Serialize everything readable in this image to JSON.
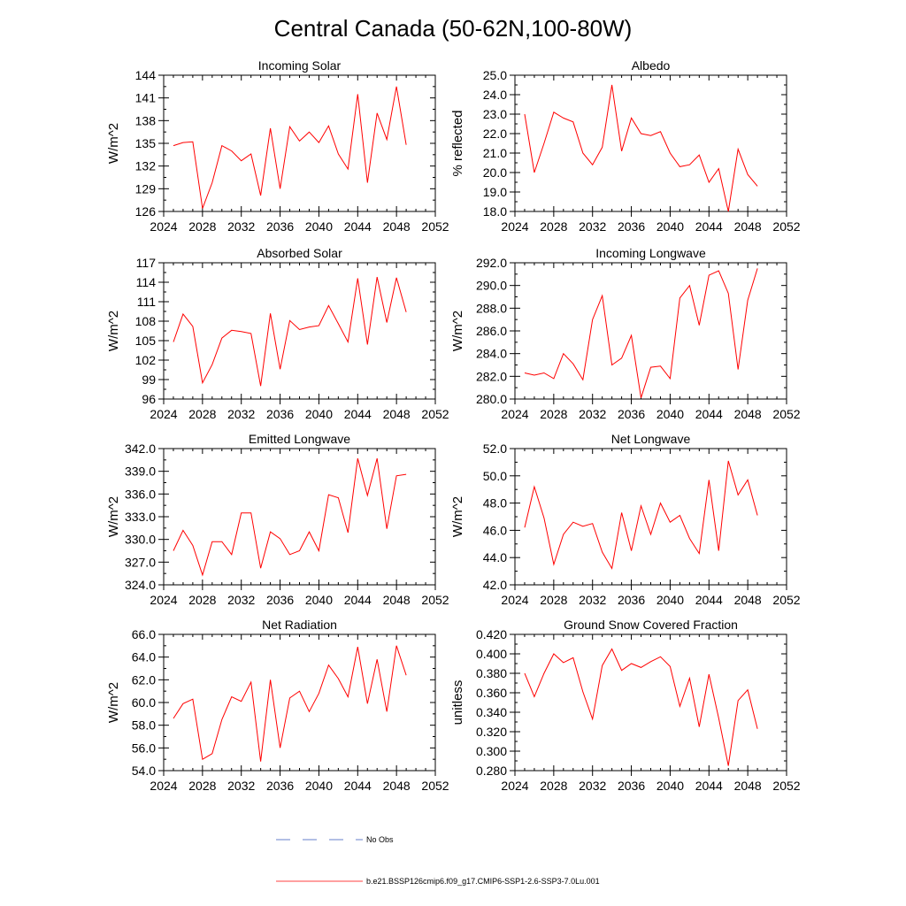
{
  "figure": {
    "title": "Central Canada (50-62N,100-80W)"
  },
  "legend": {
    "entries": [
      {
        "label": "No Obs",
        "color": "#3355bb",
        "style": "dashed"
      },
      {
        "label": "b.e21.BSSP126cmip6.f09_g17.CMIP6-SSP1-2.6-SSP3-7.0Lu.001",
        "color": "#ff0000",
        "style": "solid"
      }
    ]
  },
  "colors": {
    "series": "#ff0000",
    "axes": "#000000"
  },
  "chart_data": [
    {
      "type": "line",
      "title": "Incoming Solar",
      "xlabel": "",
      "ylabel": "W/m^2",
      "xlim": [
        2024,
        2052
      ],
      "ylim": [
        126,
        144
      ],
      "xticks": [
        2024,
        2028,
        2032,
        2036,
        2040,
        2044,
        2048,
        2052
      ],
      "xtick_labels": [
        "2024",
        "2028",
        "2032",
        "2036",
        "2040",
        "2044",
        "2048",
        "2052"
      ],
      "yticks": [
        126,
        129,
        132,
        135,
        138,
        141,
        144
      ],
      "ytick_labels": [
        "126",
        "129",
        "132",
        "135",
        "138",
        "141",
        "144"
      ],
      "x": [
        2025,
        2026,
        2027,
        2028,
        2029,
        2030,
        2031,
        2032,
        2033,
        2034,
        2035,
        2036,
        2037,
        2038,
        2039,
        2040,
        2041,
        2042,
        2043,
        2044,
        2045,
        2046,
        2047,
        2048,
        2049
      ],
      "values": [
        134.7,
        135.1,
        135.2,
        126.4,
        129.8,
        134.7,
        134.0,
        132.7,
        133.6,
        128.1,
        137.0,
        129.0,
        137.2,
        135.3,
        136.5,
        135.1,
        137.3,
        133.6,
        131.6,
        141.5,
        129.8,
        139.0,
        135.5,
        142.5,
        134.8
      ]
    },
    {
      "type": "line",
      "title": "Albedo",
      "xlabel": "",
      "ylabel": "% reflected",
      "xlim": [
        2024,
        2052
      ],
      "ylim": [
        18.0,
        25.0
      ],
      "xticks": [
        2024,
        2028,
        2032,
        2036,
        2040,
        2044,
        2048,
        2052
      ],
      "xtick_labels": [
        "2024",
        "2028",
        "2032",
        "2036",
        "2040",
        "2044",
        "2048",
        "2052"
      ],
      "yticks": [
        18.0,
        19.0,
        20.0,
        21.0,
        22.0,
        23.0,
        24.0,
        25.0
      ],
      "ytick_labels": [
        "18.0",
        "19.0",
        "20.0",
        "21.0",
        "22.0",
        "23.0",
        "24.0",
        "25.0"
      ],
      "x": [
        2025,
        2026,
        2027,
        2028,
        2029,
        2030,
        2031,
        2032,
        2033,
        2034,
        2035,
        2036,
        2037,
        2038,
        2039,
        2040,
        2041,
        2042,
        2043,
        2044,
        2045,
        2046,
        2047,
        2048,
        2049
      ],
      "values": [
        23.0,
        20.0,
        21.5,
        23.1,
        22.8,
        22.6,
        21.0,
        20.4,
        21.3,
        24.5,
        21.1,
        22.8,
        22.0,
        21.9,
        22.1,
        21.0,
        20.3,
        20.4,
        20.9,
        19.5,
        20.2,
        18.0,
        21.2,
        19.9,
        19.3
      ]
    },
    {
      "type": "line",
      "title": "Absorbed Solar",
      "xlabel": "",
      "ylabel": "W/m^2",
      "xlim": [
        2024,
        2052
      ],
      "ylim": [
        96,
        117
      ],
      "xticks": [
        2024,
        2028,
        2032,
        2036,
        2040,
        2044,
        2048,
        2052
      ],
      "xtick_labels": [
        "2024",
        "2028",
        "2032",
        "2036",
        "2040",
        "2044",
        "2048",
        "2052"
      ],
      "yticks": [
        96,
        99,
        102,
        105,
        108,
        111,
        114,
        117
      ],
      "ytick_labels": [
        "96",
        "99",
        "102",
        "105",
        "108",
        "111",
        "114",
        "117"
      ],
      "x": [
        2025,
        2026,
        2027,
        2028,
        2029,
        2030,
        2031,
        2032,
        2033,
        2034,
        2035,
        2036,
        2037,
        2038,
        2039,
        2040,
        2041,
        2042,
        2043,
        2044,
        2045,
        2046,
        2047,
        2048,
        2049
      ],
      "values": [
        104.8,
        109.1,
        107.2,
        98.5,
        101.3,
        105.4,
        106.6,
        106.4,
        106.1,
        98.0,
        109.2,
        100.6,
        108.1,
        106.7,
        107.1,
        107.3,
        110.4,
        107.6,
        104.8,
        114.6,
        104.4,
        114.8,
        107.8,
        114.7,
        109.4
      ]
    },
    {
      "type": "line",
      "title": "Incoming Longwave",
      "xlabel": "",
      "ylabel": "W/m^2",
      "xlim": [
        2024,
        2052
      ],
      "ylim": [
        280.0,
        292.0
      ],
      "xticks": [
        2024,
        2028,
        2032,
        2036,
        2040,
        2044,
        2048,
        2052
      ],
      "xtick_labels": [
        "2024",
        "2028",
        "2032",
        "2036",
        "2040",
        "2044",
        "2048",
        "2052"
      ],
      "yticks": [
        280.0,
        282.0,
        284.0,
        286.0,
        288.0,
        290.0,
        292.0
      ],
      "ytick_labels": [
        "280.0",
        "282.0",
        "284.0",
        "286.0",
        "288.0",
        "290.0",
        "292.0"
      ],
      "x": [
        2025,
        2026,
        2027,
        2028,
        2029,
        2030,
        2031,
        2032,
        2033,
        2034,
        2035,
        2036,
        2037,
        2038,
        2039,
        2040,
        2041,
        2042,
        2043,
        2044,
        2045,
        2046,
        2047,
        2048,
        2049
      ],
      "values": [
        282.3,
        282.1,
        282.3,
        281.8,
        284.0,
        283.1,
        281.7,
        287.0,
        289.1,
        283.0,
        283.6,
        285.6,
        280.1,
        282.8,
        282.9,
        281.8,
        288.9,
        290.0,
        286.5,
        290.9,
        291.3,
        289.3,
        282.6,
        288.7,
        291.5
      ]
    },
    {
      "type": "line",
      "title": "Emitted Longwave",
      "xlabel": "",
      "ylabel": "W/m^2",
      "xlim": [
        2024,
        2052
      ],
      "ylim": [
        324.0,
        342.0
      ],
      "xticks": [
        2024,
        2028,
        2032,
        2036,
        2040,
        2044,
        2048,
        2052
      ],
      "xtick_labels": [
        "2024",
        "2028",
        "2032",
        "2036",
        "2040",
        "2044",
        "2048",
        "2052"
      ],
      "yticks": [
        324.0,
        327.0,
        330.0,
        333.0,
        336.0,
        339.0,
        342.0
      ],
      "ytick_labels": [
        "324.0",
        "327.0",
        "330.0",
        "333.0",
        "336.0",
        "339.0",
        "342.0"
      ],
      "x": [
        2025,
        2026,
        2027,
        2028,
        2029,
        2030,
        2031,
        2032,
        2033,
        2034,
        2035,
        2036,
        2037,
        2038,
        2039,
        2040,
        2041,
        2042,
        2043,
        2044,
        2045,
        2046,
        2047,
        2048,
        2049
      ],
      "values": [
        328.5,
        331.2,
        329.2,
        325.3,
        329.7,
        329.7,
        328.0,
        333.5,
        333.5,
        326.2,
        331.0,
        330.1,
        328.0,
        328.5,
        331.0,
        328.5,
        335.9,
        335.5,
        330.9,
        340.7,
        335.8,
        340.7,
        331.4,
        338.4,
        338.6
      ]
    },
    {
      "type": "line",
      "title": "Net Longwave",
      "xlabel": "",
      "ylabel": "W/m^2",
      "xlim": [
        2024,
        2052
      ],
      "ylim": [
        42.0,
        52.0
      ],
      "xticks": [
        2024,
        2028,
        2032,
        2036,
        2040,
        2044,
        2048,
        2052
      ],
      "xtick_labels": [
        "2024",
        "2028",
        "2032",
        "2036",
        "2040",
        "2044",
        "2048",
        "2052"
      ],
      "yticks": [
        42.0,
        44.0,
        46.0,
        48.0,
        50.0,
        52.0
      ],
      "ytick_labels": [
        "42.0",
        "44.0",
        "46.0",
        "48.0",
        "50.0",
        "52.0"
      ],
      "x": [
        2025,
        2026,
        2027,
        2028,
        2029,
        2030,
        2031,
        2032,
        2033,
        2034,
        2035,
        2036,
        2037,
        2038,
        2039,
        2040,
        2041,
        2042,
        2043,
        2044,
        2045,
        2046,
        2047,
        2048,
        2049
      ],
      "values": [
        46.2,
        49.2,
        46.9,
        43.5,
        45.7,
        46.6,
        46.3,
        46.5,
        44.4,
        43.2,
        47.3,
        44.5,
        47.8,
        45.7,
        48.0,
        46.6,
        47.1,
        45.4,
        44.3,
        49.7,
        44.5,
        51.1,
        48.6,
        49.7,
        47.1
      ]
    },
    {
      "type": "line",
      "title": "Net Radiation",
      "xlabel": "",
      "ylabel": "W/m^2",
      "xlim": [
        2024,
        2052
      ],
      "ylim": [
        54.0,
        66.0
      ],
      "xticks": [
        2024,
        2028,
        2032,
        2036,
        2040,
        2044,
        2048,
        2052
      ],
      "xtick_labels": [
        "2024",
        "2028",
        "2032",
        "2036",
        "2040",
        "2044",
        "2048",
        "2052"
      ],
      "yticks": [
        54.0,
        56.0,
        58.0,
        60.0,
        62.0,
        64.0,
        66.0
      ],
      "ytick_labels": [
        "54.0",
        "56.0",
        "58.0",
        "60.0",
        "62.0",
        "64.0",
        "66.0"
      ],
      "x": [
        2025,
        2026,
        2027,
        2028,
        2029,
        2030,
        2031,
        2032,
        2033,
        2034,
        2035,
        2036,
        2037,
        2038,
        2039,
        2040,
        2041,
        2042,
        2043,
        2044,
        2045,
        2046,
        2047,
        2048,
        2049
      ],
      "values": [
        58.6,
        59.9,
        60.3,
        55.0,
        55.5,
        58.5,
        60.5,
        60.1,
        61.8,
        54.8,
        62.0,
        56.0,
        60.4,
        61.0,
        59.2,
        60.8,
        63.3,
        62.1,
        60.5,
        64.9,
        59.9,
        63.8,
        59.2,
        65.0,
        62.4
      ]
    },
    {
      "type": "line",
      "title": "Ground Snow Covered Fraction",
      "xlabel": "",
      "ylabel": "unitless",
      "xlim": [
        2024,
        2052
      ],
      "ylim": [
        0.28,
        0.42
      ],
      "xticks": [
        2024,
        2028,
        2032,
        2036,
        2040,
        2044,
        2048,
        2052
      ],
      "xtick_labels": [
        "2024",
        "2028",
        "2032",
        "2036",
        "2040",
        "2044",
        "2048",
        "2052"
      ],
      "yticks": [
        0.28,
        0.3,
        0.32,
        0.34,
        0.36,
        0.38,
        0.4,
        0.42
      ],
      "ytick_labels": [
        "0.280",
        "0.300",
        "0.320",
        "0.340",
        "0.360",
        "0.380",
        "0.400",
        "0.420"
      ],
      "x": [
        2025,
        2026,
        2027,
        2028,
        2029,
        2030,
        2031,
        2032,
        2033,
        2034,
        2035,
        2036,
        2037,
        2038,
        2039,
        2040,
        2041,
        2042,
        2043,
        2044,
        2045,
        2046,
        2047,
        2048,
        2049
      ],
      "values": [
        0.38,
        0.356,
        0.38,
        0.4,
        0.391,
        0.396,
        0.361,
        0.333,
        0.388,
        0.405,
        0.383,
        0.39,
        0.386,
        0.392,
        0.397,
        0.387,
        0.346,
        0.375,
        0.325,
        0.379,
        0.334,
        0.285,
        0.352,
        0.363,
        0.323
      ]
    }
  ]
}
